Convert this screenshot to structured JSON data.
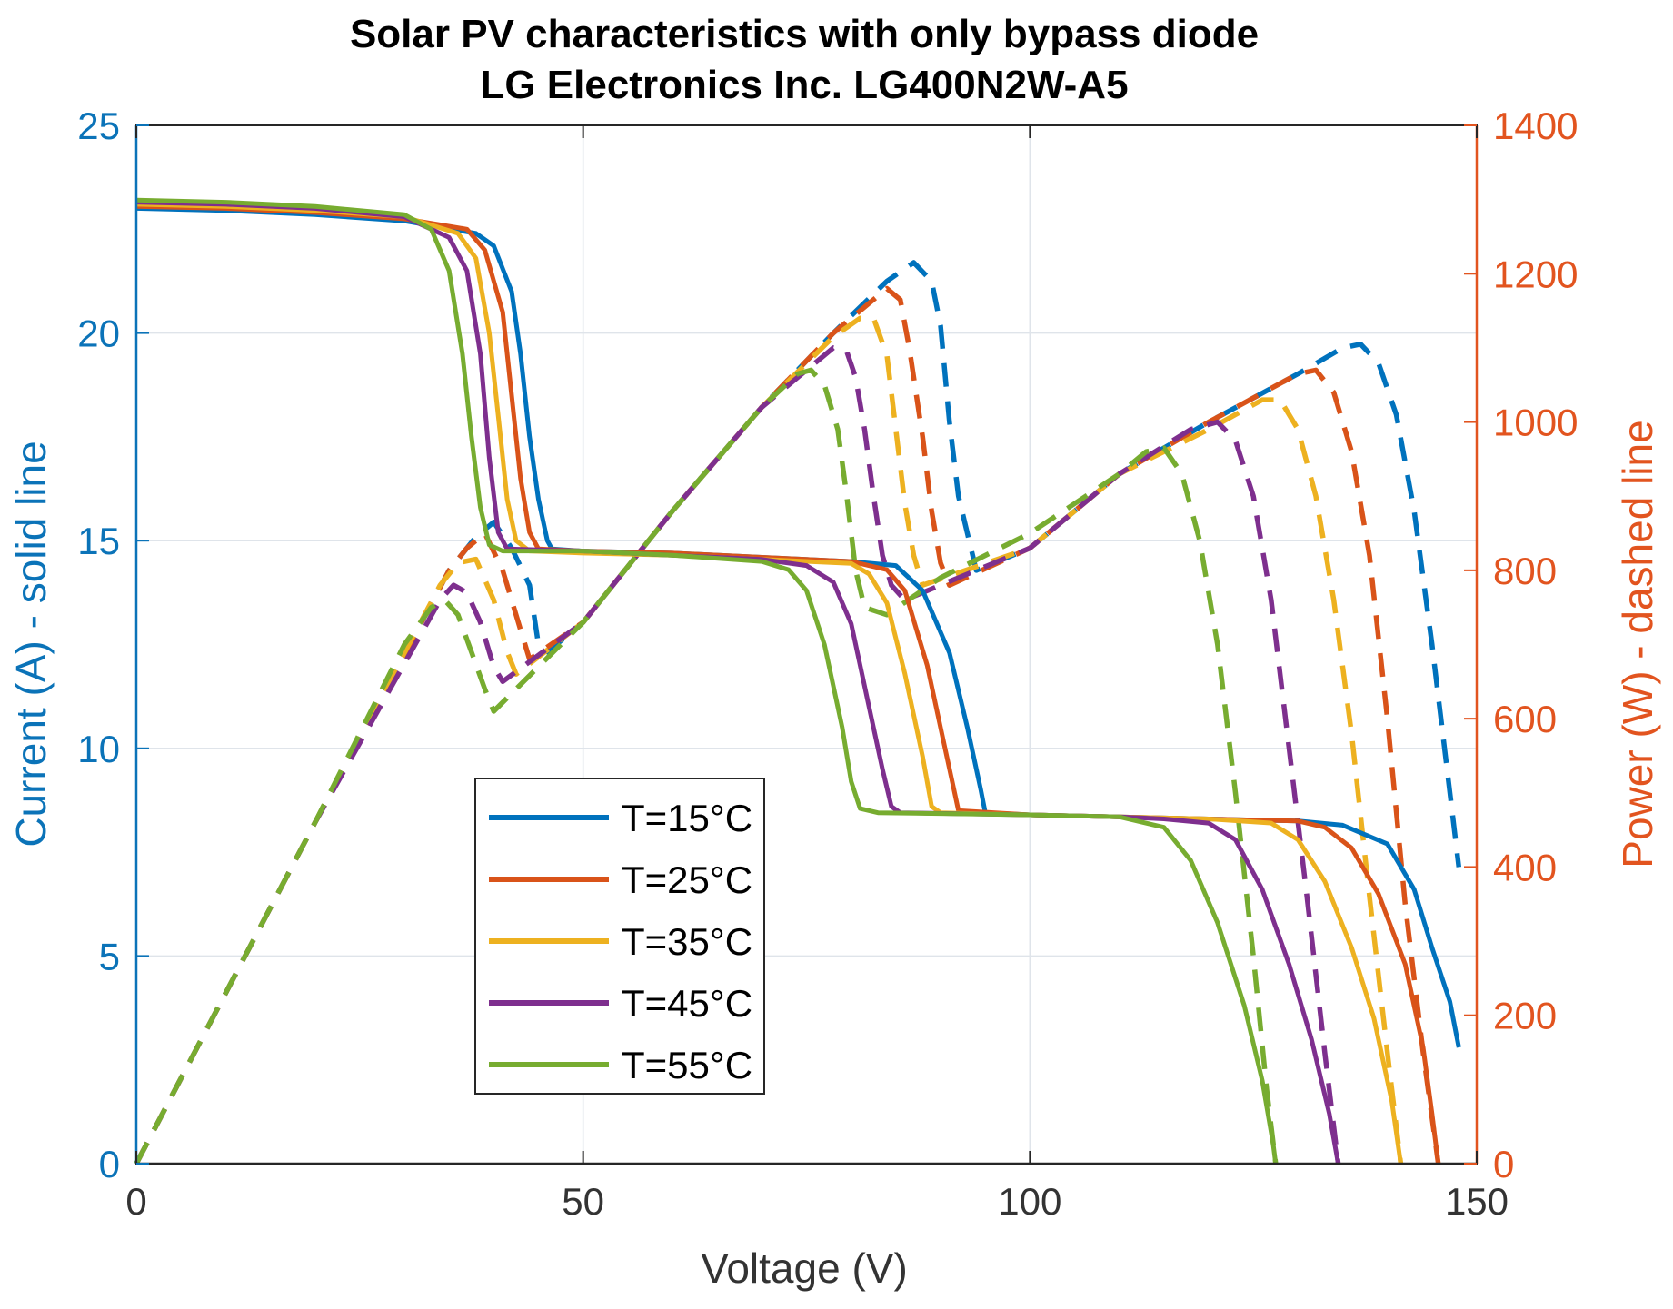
{
  "chart_data": {
    "type": "line",
    "title_line1": "Solar PV characteristics with only bypass diode",
    "title_line2": "LG Electronics Inc. LG400N2W-A5",
    "xlabel": "Voltage (V)",
    "ylabel_left": "Current (A) - solid line",
    "ylabel_right": "Power (W) - dashed line",
    "xlim": [
      0,
      150
    ],
    "ylim_left": [
      0,
      25
    ],
    "ylim_right": [
      0,
      1400
    ],
    "x_ticks": [
      0,
      50,
      100,
      150
    ],
    "y_left_ticks": [
      0,
      5,
      10,
      15,
      20,
      25
    ],
    "y_right_ticks": [
      0,
      200,
      400,
      600,
      800,
      1000,
      1200,
      1400
    ],
    "grid": true,
    "legend_position": "center-left",
    "colors": {
      "left_axis": "#0b73b8",
      "right_axis": "#e2541f"
    },
    "series": [
      {
        "name": "T=15",
        "unit": "°C",
        "color": "#0072bd",
        "current": [
          [
            0,
            23.0
          ],
          [
            10,
            22.95
          ],
          [
            20,
            22.85
          ],
          [
            30,
            22.7
          ],
          [
            38,
            22.4
          ],
          [
            40,
            22.1
          ],
          [
            42,
            21.0
          ],
          [
            43,
            19.5
          ],
          [
            44,
            17.5
          ],
          [
            45,
            16.0
          ],
          [
            46,
            15.0
          ],
          [
            46.5,
            14.8
          ],
          [
            50,
            14.75
          ],
          [
            60,
            14.7
          ],
          [
            70,
            14.6
          ],
          [
            80,
            14.5
          ],
          [
            85,
            14.4
          ],
          [
            88,
            13.8
          ],
          [
            91,
            12.3
          ],
          [
            93,
            10.5
          ],
          [
            94.5,
            9.0
          ],
          [
            95,
            8.45
          ],
          [
            100,
            8.4
          ],
          [
            110,
            8.35
          ],
          [
            120,
            8.3
          ],
          [
            130,
            8.25
          ],
          [
            135,
            8.15
          ],
          [
            140,
            7.7
          ],
          [
            143,
            6.6
          ],
          [
            145,
            5.2
          ],
          [
            147,
            3.9
          ],
          [
            148,
            2.8
          ]
        ],
        "power": [
          [
            0,
            0
          ],
          [
            20,
            460
          ],
          [
            35,
            800
          ],
          [
            38,
            845
          ],
          [
            40,
            865
          ],
          [
            42,
            830
          ],
          [
            44,
            780
          ],
          [
            45,
            700
          ],
          [
            46,
            690
          ],
          [
            50,
            730
          ],
          [
            60,
            880
          ],
          [
            70,
            1020
          ],
          [
            78,
            1120
          ],
          [
            84,
            1190
          ],
          [
            87,
            1215
          ],
          [
            89,
            1190
          ],
          [
            90,
            1130
          ],
          [
            91,
            1000
          ],
          [
            92,
            900
          ],
          [
            93,
            850
          ],
          [
            94,
            800
          ],
          [
            100,
            830
          ],
          [
            110,
            930
          ],
          [
            120,
            1000
          ],
          [
            130,
            1065
          ],
          [
            135,
            1100
          ],
          [
            137,
            1105
          ],
          [
            139,
            1080
          ],
          [
            141,
            1010
          ],
          [
            143,
            880
          ],
          [
            145,
            700
          ],
          [
            147,
            500
          ],
          [
            148,
            400
          ]
        ]
      },
      {
        "name": "T=25",
        "unit": "°C",
        "color": "#d95319",
        "current": [
          [
            0,
            23.05
          ],
          [
            10,
            23.0
          ],
          [
            20,
            22.9
          ],
          [
            30,
            22.75
          ],
          [
            37,
            22.5
          ],
          [
            39,
            22.0
          ],
          [
            41,
            20.5
          ],
          [
            42,
            18.5
          ],
          [
            43,
            16.5
          ],
          [
            44,
            15.2
          ],
          [
            45,
            14.8
          ],
          [
            50,
            14.75
          ],
          [
            60,
            14.7
          ],
          [
            70,
            14.6
          ],
          [
            80,
            14.5
          ],
          [
            84,
            14.3
          ],
          [
            86,
            13.8
          ],
          [
            88.5,
            12.0
          ],
          [
            90,
            10.5
          ],
          [
            91.5,
            9.0
          ],
          [
            92,
            8.5
          ],
          [
            100,
            8.4
          ],
          [
            110,
            8.35
          ],
          [
            120,
            8.3
          ],
          [
            130,
            8.25
          ],
          [
            133,
            8.1
          ],
          [
            136,
            7.6
          ],
          [
            139,
            6.5
          ],
          [
            142,
            4.8
          ],
          [
            144,
            2.8
          ],
          [
            145,
            1.2
          ],
          [
            145.7,
            0
          ]
        ],
        "power": [
          [
            0,
            0
          ],
          [
            20,
            460
          ],
          [
            35,
            800
          ],
          [
            37,
            830
          ],
          [
            39,
            850
          ],
          [
            41,
            800
          ],
          [
            43,
            720
          ],
          [
            44,
            680
          ],
          [
            50,
            730
          ],
          [
            60,
            880
          ],
          [
            70,
            1020
          ],
          [
            78,
            1120
          ],
          [
            82,
            1160
          ],
          [
            84,
            1180
          ],
          [
            85.5,
            1165
          ],
          [
            86.5,
            1100
          ],
          [
            88,
            980
          ],
          [
            89,
            880
          ],
          [
            90,
            810
          ],
          [
            91,
            780
          ],
          [
            100,
            830
          ],
          [
            110,
            930
          ],
          [
            120,
            1000
          ],
          [
            130,
            1065
          ],
          [
            132,
            1070
          ],
          [
            134,
            1040
          ],
          [
            136,
            960
          ],
          [
            138,
            820
          ],
          [
            140,
            600
          ],
          [
            142,
            350
          ],
          [
            144,
            150
          ],
          [
            145.7,
            0
          ]
        ]
      },
      {
        "name": "T=35",
        "unit": "°C",
        "color": "#edb120",
        "current": [
          [
            0,
            23.1
          ],
          [
            10,
            23.05
          ],
          [
            20,
            22.95
          ],
          [
            30,
            22.8
          ],
          [
            36,
            22.4
          ],
          [
            38,
            21.8
          ],
          [
            39.5,
            20.0
          ],
          [
            40.5,
            18.0
          ],
          [
            41.5,
            16.0
          ],
          [
            42.5,
            15.0
          ],
          [
            44,
            14.75
          ],
          [
            50,
            14.7
          ],
          [
            60,
            14.65
          ],
          [
            70,
            14.55
          ],
          [
            80,
            14.45
          ],
          [
            82,
            14.2
          ],
          [
            84,
            13.5
          ],
          [
            86,
            11.8
          ],
          [
            88,
            9.8
          ],
          [
            89,
            8.6
          ],
          [
            90,
            8.45
          ],
          [
            100,
            8.4
          ],
          [
            110,
            8.35
          ],
          [
            120,
            8.3
          ],
          [
            127,
            8.2
          ],
          [
            130,
            7.8
          ],
          [
            133,
            6.8
          ],
          [
            136,
            5.2
          ],
          [
            138.5,
            3.5
          ],
          [
            140.5,
            1.5
          ],
          [
            141.5,
            0
          ]
        ],
        "power": [
          [
            0,
            0
          ],
          [
            20,
            460
          ],
          [
            34,
            780
          ],
          [
            36,
            810
          ],
          [
            38,
            815
          ],
          [
            40,
            760
          ],
          [
            41.5,
            690
          ],
          [
            42.5,
            660
          ],
          [
            50,
            730
          ],
          [
            60,
            880
          ],
          [
            70,
            1020
          ],
          [
            78,
            1115
          ],
          [
            81,
            1140
          ],
          [
            82.5,
            1140
          ],
          [
            84,
            1090
          ],
          [
            85,
            990
          ],
          [
            86,
            890
          ],
          [
            87,
            820
          ],
          [
            88,
            780
          ],
          [
            100,
            830
          ],
          [
            110,
            930
          ],
          [
            120,
            990
          ],
          [
            126,
            1030
          ],
          [
            128,
            1030
          ],
          [
            130,
            990
          ],
          [
            132,
            900
          ],
          [
            134,
            760
          ],
          [
            136,
            580
          ],
          [
            138,
            360
          ],
          [
            140,
            150
          ],
          [
            141.5,
            0
          ]
        ]
      },
      {
        "name": "T=45",
        "unit": "°C",
        "color": "#7e2f8e",
        "current": [
          [
            0,
            23.15
          ],
          [
            10,
            23.1
          ],
          [
            20,
            23.0
          ],
          [
            30,
            22.8
          ],
          [
            35,
            22.3
          ],
          [
            37,
            21.5
          ],
          [
            38.5,
            19.5
          ],
          [
            39.5,
            17.0
          ],
          [
            40.5,
            15.2
          ],
          [
            41.5,
            14.8
          ],
          [
            50,
            14.75
          ],
          [
            60,
            14.65
          ],
          [
            70,
            14.55
          ],
          [
            75,
            14.4
          ],
          [
            78,
            14.0
          ],
          [
            80,
            13.0
          ],
          [
            82,
            11.0
          ],
          [
            83.5,
            9.5
          ],
          [
            84.5,
            8.6
          ],
          [
            85.5,
            8.45
          ],
          [
            100,
            8.4
          ],
          [
            110,
            8.35
          ],
          [
            115,
            8.3
          ],
          [
            120,
            8.2
          ],
          [
            123,
            7.8
          ],
          [
            126,
            6.6
          ],
          [
            129,
            4.8
          ],
          [
            131.5,
            3.0
          ],
          [
            133.5,
            1.2
          ],
          [
            134.5,
            0
          ]
        ],
        "power": [
          [
            0,
            0
          ],
          [
            20,
            460
          ],
          [
            34,
            760
          ],
          [
            35.5,
            780
          ],
          [
            37,
            770
          ],
          [
            38.5,
            730
          ],
          [
            40,
            670
          ],
          [
            41,
            650
          ],
          [
            50,
            730
          ],
          [
            60,
            880
          ],
          [
            70,
            1020
          ],
          [
            76,
            1080
          ],
          [
            78,
            1100
          ],
          [
            79.5,
            1095
          ],
          [
            80.5,
            1060
          ],
          [
            81.5,
            990
          ],
          [
            82.5,
            900
          ],
          [
            83.5,
            820
          ],
          [
            84.5,
            780
          ],
          [
            86,
            760
          ],
          [
            100,
            830
          ],
          [
            110,
            930
          ],
          [
            118,
            990
          ],
          [
            121,
            1000
          ],
          [
            123,
            975
          ],
          [
            125,
            900
          ],
          [
            127,
            760
          ],
          [
            129,
            560
          ],
          [
            131,
            360
          ],
          [
            133,
            150
          ],
          [
            134.5,
            0
          ]
        ]
      },
      {
        "name": "T=55",
        "unit": "°C",
        "color": "#77ac30",
        "current": [
          [
            0,
            23.2
          ],
          [
            10,
            23.15
          ],
          [
            20,
            23.05
          ],
          [
            30,
            22.85
          ],
          [
            33,
            22.5
          ],
          [
            35,
            21.5
          ],
          [
            36.5,
            19.5
          ],
          [
            37.5,
            17.5
          ],
          [
            38.5,
            15.8
          ],
          [
            39.5,
            14.9
          ],
          [
            41,
            14.75
          ],
          [
            50,
            14.75
          ],
          [
            60,
            14.65
          ],
          [
            70,
            14.5
          ],
          [
            73,
            14.3
          ],
          [
            75,
            13.8
          ],
          [
            77,
            12.5
          ],
          [
            79,
            10.5
          ],
          [
            80,
            9.2
          ],
          [
            81,
            8.55
          ],
          [
            83,
            8.45
          ],
          [
            100,
            8.4
          ],
          [
            110,
            8.35
          ],
          [
            115,
            8.1
          ],
          [
            118,
            7.3
          ],
          [
            121,
            5.8
          ],
          [
            124,
            3.8
          ],
          [
            126,
            2.0
          ],
          [
            127.2,
            0.5
          ],
          [
            127.5,
            0
          ]
        ],
        "power": [
          [
            0,
            0
          ],
          [
            10,
            230
          ],
          [
            20,
            460
          ],
          [
            30,
            700
          ],
          [
            33,
            750
          ],
          [
            34.5,
            760
          ],
          [
            36,
            740
          ],
          [
            37.5,
            690
          ],
          [
            39,
            640
          ],
          [
            40,
            610
          ],
          [
            50,
            730
          ],
          [
            60,
            880
          ],
          [
            70,
            1020
          ],
          [
            74,
            1065
          ],
          [
            75.5,
            1070
          ],
          [
            77,
            1050
          ],
          [
            78.5,
            990
          ],
          [
            79.5,
            900
          ],
          [
            80.5,
            800
          ],
          [
            81.5,
            750
          ],
          [
            84,
            740
          ],
          [
            90,
            790
          ],
          [
            100,
            850
          ],
          [
            110,
            930
          ],
          [
            113,
            960
          ],
          [
            115,
            965
          ],
          [
            117,
            930
          ],
          [
            119,
            840
          ],
          [
            121,
            700
          ],
          [
            123,
            500
          ],
          [
            125,
            280
          ],
          [
            126.5,
            100
          ],
          [
            127.5,
            0
          ]
        ]
      }
    ]
  }
}
